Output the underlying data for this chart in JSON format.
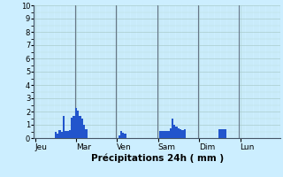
{
  "xlabel": "Précipitations 24h ( mm )",
  "ylim": [
    0,
    10
  ],
  "yticks": [
    0,
    1,
    2,
    3,
    4,
    5,
    6,
    7,
    8,
    9,
    10
  ],
  "background_color": "#cceeff",
  "bar_color": "#2255cc",
  "grid_major_color": "#aacccc",
  "grid_minor_color": "#bbdddd",
  "day_line_color": "#667788",
  "total_bars": 120,
  "day_labels": [
    "Jeu",
    "Mar",
    "Ven",
    "Sam",
    "Dim",
    "Lun"
  ],
  "day_tick_positions": [
    0,
    20,
    40,
    60,
    80,
    100
  ],
  "values": [
    0,
    0,
    0,
    0,
    0,
    0,
    0,
    0,
    0,
    0,
    0.45,
    0.35,
    0.6,
    0.5,
    1.65,
    0.55,
    0.55,
    0.6,
    1.55,
    1.7,
    2.3,
    2.05,
    1.65,
    1.5,
    1.0,
    0.65,
    0,
    0,
    0,
    0,
    0,
    0,
    0,
    0,
    0,
    0,
    0,
    0,
    0,
    0,
    0,
    0.2,
    0.55,
    0.4,
    0.35,
    0,
    0,
    0,
    0,
    0,
    0,
    0,
    0,
    0,
    0,
    0,
    0,
    0,
    0,
    0,
    0,
    0.55,
    0.55,
    0.55,
    0.55,
    0.55,
    0.75,
    1.5,
    1.0,
    0.85,
    0.75,
    0.65,
    0.6,
    0.65,
    0,
    0,
    0,
    0,
    0,
    0,
    0,
    0,
    0,
    0,
    0,
    0,
    0,
    0,
    0,
    0,
    0.65,
    0.65,
    0.65,
    0.65,
    0,
    0,
    0,
    0,
    0,
    0,
    0,
    0,
    0,
    0,
    0,
    0,
    0,
    0,
    0,
    0,
    0,
    0,
    0,
    0,
    0,
    0,
    0,
    0,
    0,
    0
  ]
}
